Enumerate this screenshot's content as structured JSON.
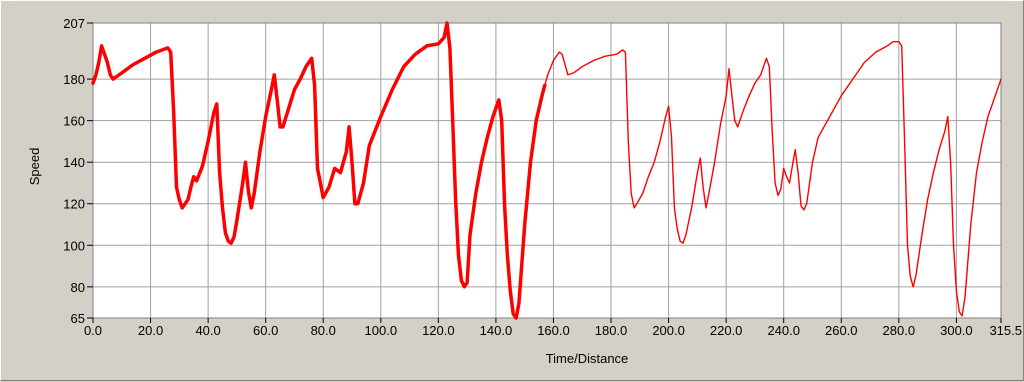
{
  "chart_data": {
    "type": "line",
    "title": "",
    "xlabel": "Time/Distance",
    "ylabel": "Speed",
    "xlim": [
      0,
      315.5
    ],
    "ylim": [
      65,
      207
    ],
    "grid": true,
    "plot_background": "#ffffff",
    "grid_color": "#a0a0a0",
    "frame_color": "#d4d0c8",
    "series_color": "#ff0000",
    "x_ticks": [
      {
        "value": 0,
        "label": "0.0"
      },
      {
        "value": 20,
        "label": "20.0"
      },
      {
        "value": 40,
        "label": "40.0"
      },
      {
        "value": 60,
        "label": "60.0"
      },
      {
        "value": 80,
        "label": "80.0"
      },
      {
        "value": 100,
        "label": "100.0"
      },
      {
        "value": 120,
        "label": "120.0"
      },
      {
        "value": 140,
        "label": "140.0"
      },
      {
        "value": 160,
        "label": "160.0"
      },
      {
        "value": 180,
        "label": "180.0"
      },
      {
        "value": 200,
        "label": "200.0"
      },
      {
        "value": 220,
        "label": "220.0"
      },
      {
        "value": 240,
        "label": "240.0"
      },
      {
        "value": 260,
        "label": "260.0"
      },
      {
        "value": 280,
        "label": "280.0"
      },
      {
        "value": 300,
        "label": "300.0"
      },
      {
        "value": 315.5,
        "label": "315.5"
      }
    ],
    "y_ticks": [
      {
        "value": 65,
        "label": "65"
      },
      {
        "value": 80,
        "label": "80"
      },
      {
        "value": 100,
        "label": "100"
      },
      {
        "value": 120,
        "label": "120"
      },
      {
        "value": 140,
        "label": "140"
      },
      {
        "value": 160,
        "label": "160"
      },
      {
        "value": 180,
        "label": "180"
      },
      {
        "value": 207,
        "label": "207"
      }
    ],
    "series": [
      {
        "style": "thick",
        "points": [
          [
            0,
            178
          ],
          [
            1,
            182
          ],
          [
            2,
            188
          ],
          [
            3,
            196
          ],
          [
            4,
            192
          ],
          [
            5,
            188
          ],
          [
            6,
            182
          ],
          [
            7,
            180
          ],
          [
            8,
            181
          ],
          [
            10,
            183
          ],
          [
            14,
            187
          ],
          [
            18,
            190
          ],
          [
            22,
            193
          ],
          [
            26,
            195
          ],
          [
            27,
            193
          ],
          [
            28,
            165
          ],
          [
            29,
            128
          ],
          [
            30,
            122
          ],
          [
            31,
            118
          ],
          [
            32,
            120
          ],
          [
            33,
            122
          ],
          [
            34,
            128
          ],
          [
            35,
            133
          ],
          [
            36,
            131
          ],
          [
            38,
            138
          ],
          [
            40,
            150
          ],
          [
            42,
            164
          ],
          [
            43,
            168
          ],
          [
            44,
            135
          ],
          [
            45,
            118
          ],
          [
            46,
            106
          ],
          [
            47,
            102
          ],
          [
            48,
            101
          ],
          [
            49,
            104
          ],
          [
            50,
            112
          ],
          [
            52,
            130
          ],
          [
            53,
            140
          ],
          [
            54,
            126
          ],
          [
            55,
            118
          ],
          [
            56,
            125
          ],
          [
            58,
            145
          ],
          [
            60,
            162
          ],
          [
            62,
            175
          ],
          [
            63,
            182
          ],
          [
            64,
            170
          ],
          [
            65,
            157
          ],
          [
            66,
            157
          ],
          [
            68,
            166
          ],
          [
            70,
            175
          ],
          [
            72,
            180
          ],
          [
            74,
            186
          ],
          [
            76,
            190
          ],
          [
            77,
            177
          ],
          [
            78,
            137
          ],
          [
            79,
            130
          ],
          [
            80,
            123
          ],
          [
            82,
            128
          ],
          [
            84,
            137
          ],
          [
            86,
            135
          ],
          [
            88,
            145
          ],
          [
            89,
            157
          ],
          [
            90,
            140
          ],
          [
            91,
            120
          ],
          [
            92,
            120
          ],
          [
            94,
            130
          ],
          [
            96,
            148
          ],
          [
            100,
            162
          ],
          [
            104,
            175
          ],
          [
            108,
            186
          ],
          [
            112,
            192
          ],
          [
            116,
            196
          ],
          [
            120,
            197
          ],
          [
            122,
            200
          ],
          [
            123,
            207
          ],
          [
            124,
            195
          ],
          [
            125,
            160
          ],
          [
            126,
            122
          ],
          [
            127,
            95
          ],
          [
            128,
            83
          ],
          [
            129,
            80
          ],
          [
            130,
            82
          ],
          [
            131,
            105
          ],
          [
            133,
            125
          ],
          [
            135,
            140
          ],
          [
            137,
            152
          ],
          [
            139,
            162
          ],
          [
            141,
            170
          ],
          [
            142,
            160
          ],
          [
            143,
            120
          ],
          [
            144,
            95
          ],
          [
            145,
            78
          ],
          [
            146,
            67
          ],
          [
            147,
            65
          ],
          [
            148,
            72
          ],
          [
            150,
            110
          ],
          [
            152,
            140
          ],
          [
            154,
            160
          ],
          [
            156,
            172
          ],
          [
            157,
            177
          ]
        ]
      },
      {
        "style": "thin",
        "points": [
          [
            157,
            177
          ],
          [
            158,
            182
          ],
          [
            160,
            189
          ],
          [
            162,
            193
          ],
          [
            163,
            192
          ],
          [
            164,
            187
          ],
          [
            165,
            182
          ],
          [
            167,
            183
          ],
          [
            170,
            186
          ],
          [
            174,
            189
          ],
          [
            178,
            191
          ],
          [
            182,
            192
          ],
          [
            184,
            194
          ],
          [
            185,
            193
          ],
          [
            186,
            150
          ],
          [
            187,
            125
          ],
          [
            188,
            118
          ],
          [
            189,
            120
          ],
          [
            191,
            125
          ],
          [
            193,
            133
          ],
          [
            195,
            140
          ],
          [
            197,
            150
          ],
          [
            199,
            162
          ],
          [
            200,
            167
          ],
          [
            201,
            152
          ],
          [
            202,
            118
          ],
          [
            203,
            108
          ],
          [
            204,
            102
          ],
          [
            205,
            101
          ],
          [
            206,
            105
          ],
          [
            208,
            118
          ],
          [
            210,
            135
          ],
          [
            211,
            142
          ],
          [
            212,
            128
          ],
          [
            213,
            118
          ],
          [
            214,
            125
          ],
          [
            216,
            140
          ],
          [
            218,
            158
          ],
          [
            220,
            172
          ],
          [
            221,
            185
          ],
          [
            222,
            172
          ],
          [
            223,
            160
          ],
          [
            224,
            157
          ],
          [
            226,
            165
          ],
          [
            228,
            172
          ],
          [
            230,
            178
          ],
          [
            232,
            182
          ],
          [
            234,
            190
          ],
          [
            235,
            186
          ],
          [
            236,
            155
          ],
          [
            237,
            130
          ],
          [
            238,
            124
          ],
          [
            239,
            127
          ],
          [
            240,
            137
          ],
          [
            241,
            133
          ],
          [
            242,
            130
          ],
          [
            243,
            138
          ],
          [
            244,
            146
          ],
          [
            245,
            135
          ],
          [
            246,
            119
          ],
          [
            247,
            117
          ],
          [
            248,
            120
          ],
          [
            250,
            140
          ],
          [
            252,
            152
          ],
          [
            256,
            162
          ],
          [
            260,
            172
          ],
          [
            264,
            180
          ],
          [
            268,
            188
          ],
          [
            272,
            193
          ],
          [
            276,
            196
          ],
          [
            278,
            198
          ],
          [
            280,
            198
          ],
          [
            281,
            196
          ],
          [
            282,
            150
          ],
          [
            283,
            100
          ],
          [
            284,
            85
          ],
          [
            285,
            80
          ],
          [
            286,
            86
          ],
          [
            288,
            105
          ],
          [
            290,
            122
          ],
          [
            292,
            135
          ],
          [
            294,
            146
          ],
          [
            296,
            155
          ],
          [
            297,
            162
          ],
          [
            298,
            140
          ],
          [
            299,
            100
          ],
          [
            300,
            78
          ],
          [
            301,
            68
          ],
          [
            302,
            66
          ],
          [
            303,
            75
          ],
          [
            305,
            110
          ],
          [
            307,
            135
          ],
          [
            309,
            150
          ],
          [
            311,
            162
          ],
          [
            313,
            170
          ],
          [
            315,
            178
          ],
          [
            315.5,
            180
          ]
        ]
      }
    ]
  }
}
